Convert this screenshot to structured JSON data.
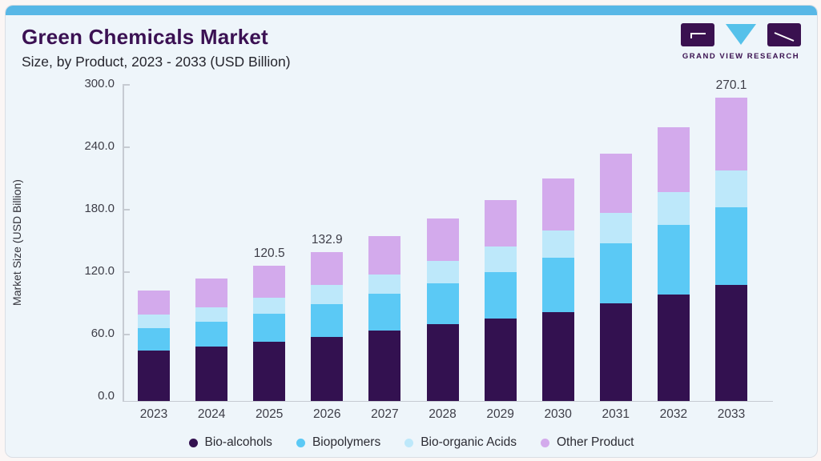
{
  "page": {
    "title": "Green Chemicals Market",
    "subtitle": "Size, by Product, 2023 - 2033 (USD Billion)"
  },
  "logo": {
    "text": "GRAND VIEW RESEARCH",
    "dark_color": "#3a1150",
    "triangle_color": "#55c1ea"
  },
  "colors": {
    "card_background": "#eef5fa",
    "top_strip": "#58b7e6",
    "axis": "#c6cbd2",
    "title_text": "#3b1153",
    "tick_text": "#3d3d47"
  },
  "chart_data": {
    "type": "bar",
    "stacked": true,
    "title": "Green Chemicals Market Size, by Product, 2023 - 2033 (USD Billion)",
    "xlabel": "",
    "ylabel": "Market Size (USD Billion)",
    "ylim": [
      0,
      300
    ],
    "yticks": [
      "0.0",
      "60.0",
      "120.0",
      "180.0",
      "240.0",
      "300.0"
    ],
    "grid": false,
    "legend_position": "bottom",
    "categories": [
      "2023",
      "2024",
      "2025",
      "2026",
      "2027",
      "2028",
      "2029",
      "2030",
      "2031",
      "2032",
      "2033"
    ],
    "series": [
      {
        "name": "Bio-alcohols",
        "color": "#331150",
        "values": [
          44.7,
          48.5,
          52.5,
          57.3,
          62.8,
          68.2,
          73.5,
          79.4,
          87.0,
          94.9,
          103.1
        ]
      },
      {
        "name": "Biopolymers",
        "color": "#5bc9f5",
        "values": [
          19.9,
          22.3,
          25.5,
          29.2,
          32.5,
          36.7,
          41.5,
          48.0,
          53.7,
          61.7,
          69.7
        ]
      },
      {
        "name": "Bio-organic Acids",
        "color": "#bde8fa",
        "values": [
          12.5,
          12.9,
          14.2,
          17.1,
          17.4,
          19.6,
          22.6,
          24.5,
          27.1,
          29.7,
          32.5
        ]
      },
      {
        "name": "Other Product",
        "color": "#d3aaec",
        "values": [
          21.3,
          25.6,
          28.3,
          29.3,
          34.4,
          38.1,
          41.6,
          46.3,
          52.2,
          57.5,
          64.8
        ]
      }
    ],
    "bar_labels": {
      "2025": "120.5",
      "2026": "132.9",
      "2033": "270.1"
    }
  }
}
